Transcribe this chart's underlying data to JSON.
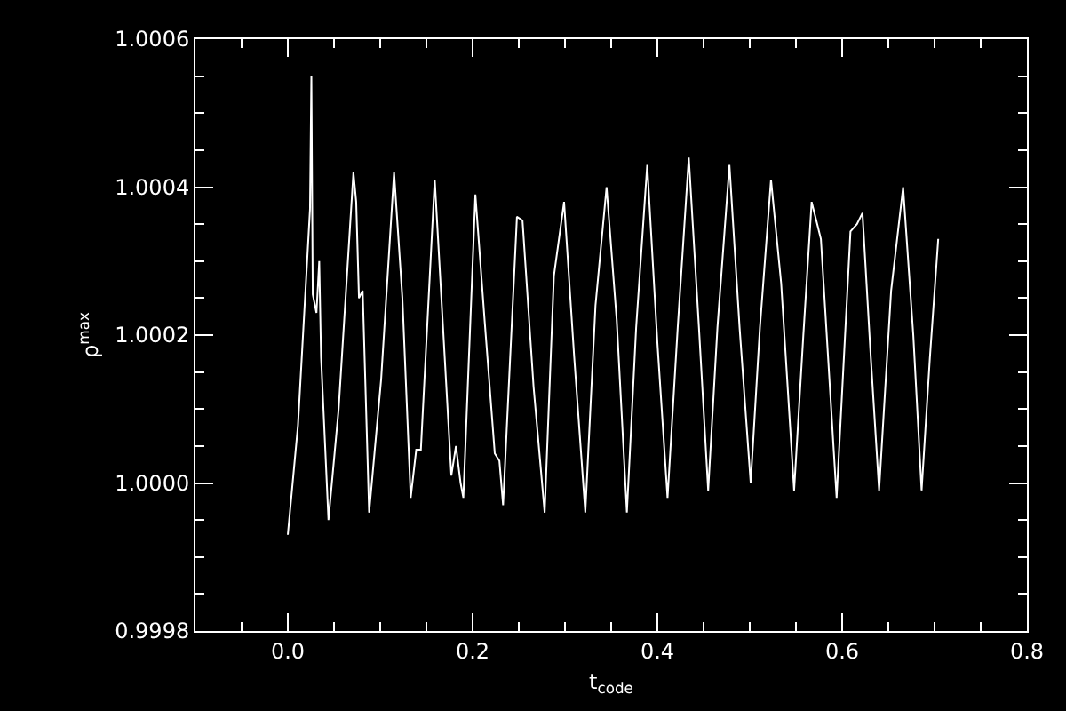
{
  "chart_data": {
    "type": "line",
    "xlabel": "t$_{code}$",
    "ylabel": "ρ$^{max}$",
    "xlim": [
      -0.1,
      0.8
    ],
    "xticks": [
      {
        "value": -0.05,
        "label": null
      },
      {
        "value": 0.0,
        "label": "0.0"
      },
      {
        "value": 0.05,
        "label": null
      },
      {
        "value": 0.1,
        "label": null
      },
      {
        "value": 0.15,
        "label": null
      },
      0.2,
      {
        "value": 0.25,
        "label": null
      },
      {
        "value": 0.3,
        "label": null
      },
      {
        "value": 0.35,
        "label": null
      },
      0.4,
      {
        "value": 0.45,
        "label": null
      },
      {
        "value": 0.5,
        "label": null
      },
      {
        "value": 0.55,
        "label": null
      },
      0.6,
      {
        "value": 0.65,
        "label": null
      },
      {
        "value": 0.7,
        "label": null
      },
      {
        "value": 0.75,
        "label": null
      },
      0.8
    ],
    "ylim": [
      0.9998,
      1.0006
    ],
    "yticks": [
      {
        "value": 0.9998,
        "label": "0.9998"
      },
      {
        "value": 0.99985,
        "label": null
      },
      {
        "value": 0.9999,
        "label": null
      },
      {
        "value": 0.99995,
        "label": null
      },
      {
        "value": 1.0,
        "label": "1.0000"
      },
      {
        "value": 1.00005,
        "label": null
      },
      {
        "value": 1.0001,
        "label": null
      },
      {
        "value": 1.00015,
        "label": null
      },
      {
        "value": 1.0002,
        "label": "1.0002"
      },
      {
        "value": 1.00025,
        "label": null
      },
      {
        "value": 1.0003,
        "label": null
      },
      {
        "value": 1.00035,
        "label": null
      },
      {
        "value": 1.0004,
        "label": "1.0004"
      },
      {
        "value": 1.00045,
        "label": null
      },
      {
        "value": 1.0005,
        "label": null
      },
      {
        "value": 1.00055,
        "label": null
      },
      {
        "value": 1.0006,
        "label": "1.0006"
      }
    ],
    "grid": false,
    "marker": "none",
    "line_style": "solid",
    "series": [
      {
        "color": "#ffffff",
        "x": [
          0.0,
          0.011,
          0.024,
          0.0255,
          0.027,
          0.031,
          0.034,
          0.036,
          0.044,
          0.055,
          0.071,
          0.074,
          0.077,
          0.081,
          0.088,
          0.101,
          0.115,
          0.124,
          0.133,
          0.139,
          0.144,
          0.159,
          0.168,
          0.177,
          0.182,
          0.187,
          0.19,
          0.203,
          0.213,
          0.224,
          0.229,
          0.233,
          0.248,
          0.254,
          0.266,
          0.278,
          0.288,
          0.299,
          0.31,
          0.322,
          0.333,
          0.345,
          0.356,
          0.367,
          0.377,
          0.389,
          0.4,
          0.411,
          0.422,
          0.434,
          0.445,
          0.455,
          0.465,
          0.478,
          0.489,
          0.501,
          0.511,
          0.523,
          0.534,
          0.548,
          0.558,
          0.567,
          0.577,
          0.594,
          0.609,
          0.616,
          0.622,
          0.631,
          0.64,
          0.653,
          0.666,
          0.677,
          0.686,
          0.695,
          0.704
        ],
        "values": [
          0.99993,
          1.000078,
          1.00037,
          1.00055,
          1.000255,
          1.00023,
          1.0003,
          1.00017,
          0.99995,
          1.0001,
          1.00042,
          1.00038,
          1.00025,
          1.00026,
          0.99996,
          1.00014,
          1.00042,
          1.00025,
          0.99998,
          1.000045,
          1.000045,
          1.00041,
          1.00021,
          1.00001,
          1.00005,
          1.0,
          0.99998,
          1.00039,
          1.00022,
          1.00004,
          1.00003,
          0.99997,
          1.00036,
          1.000355,
          1.00013,
          0.99996,
          1.00028,
          1.00038,
          1.00017,
          0.99996,
          1.00024,
          1.0004,
          1.00022,
          0.99996,
          1.00021,
          1.00043,
          1.00019,
          0.99998,
          1.00021,
          1.00044,
          1.00021,
          0.99999,
          1.00021,
          1.00043,
          1.00021,
          1.0,
          1.00021,
          1.00041,
          1.00027,
          0.99999,
          1.0002,
          1.00038,
          1.00033,
          0.99998,
          1.00034,
          1.00035,
          1.000365,
          1.00017,
          0.99999,
          1.00026,
          1.0004,
          1.0002,
          0.99999,
          1.00017,
          1.00033
        ]
      }
    ]
  }
}
